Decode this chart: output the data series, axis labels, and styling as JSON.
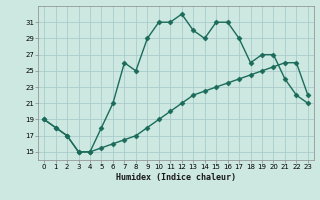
{
  "xlabel": "Humidex (Indice chaleur)",
  "ylabel": "",
  "bg_color": "#cce8e0",
  "grid_color": "#aacccc",
  "line_color": "#1a6b5a",
  "xlim": [
    -0.5,
    23.5
  ],
  "ylim": [
    14,
    33
  ],
  "xticks": [
    0,
    1,
    2,
    3,
    4,
    5,
    6,
    7,
    8,
    9,
    10,
    11,
    12,
    13,
    14,
    15,
    16,
    17,
    18,
    19,
    20,
    21,
    22,
    23
  ],
  "yticks": [
    15,
    17,
    19,
    21,
    23,
    25,
    27,
    29,
    31
  ],
  "line1_x": [
    0,
    1,
    2,
    3,
    4,
    5,
    6,
    7,
    8,
    9,
    10,
    11,
    12,
    13,
    14,
    15,
    16,
    17,
    18,
    19,
    20,
    21,
    22,
    23
  ],
  "line1_y": [
    19,
    18,
    17,
    15,
    15,
    18,
    21,
    26,
    25,
    29,
    31,
    31,
    32,
    30,
    29,
    31,
    31,
    29,
    26,
    27,
    27,
    24,
    22,
    21
  ],
  "line2_x": [
    0,
    1,
    2,
    3,
    4,
    5,
    6,
    7,
    8,
    9,
    10,
    11,
    12,
    13,
    14,
    15,
    16,
    17,
    18,
    19,
    20,
    21,
    22,
    23
  ],
  "line2_y": [
    19,
    18,
    17,
    15,
    15,
    15.5,
    16,
    16.5,
    17,
    18,
    19,
    20,
    21,
    22,
    22.5,
    23,
    23.5,
    24,
    24.5,
    25,
    25.5,
    26,
    26,
    22
  ],
  "marker": "D",
  "markersize": 2.5,
  "linewidth": 1.0
}
